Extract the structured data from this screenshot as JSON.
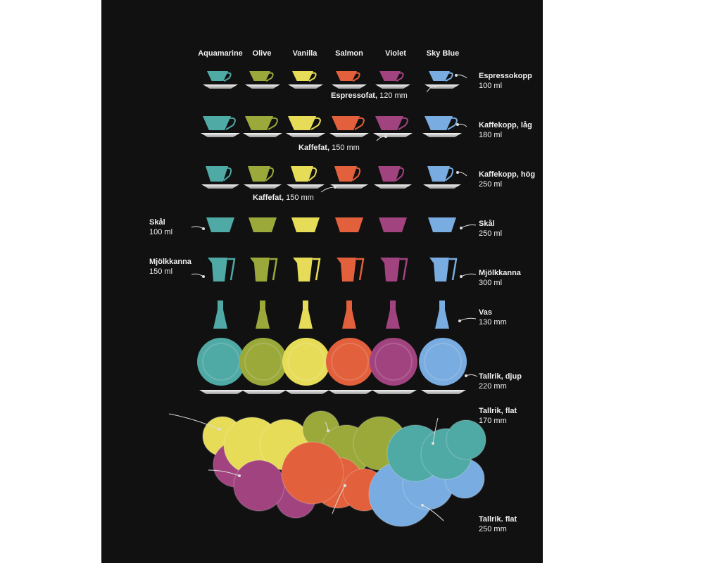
{
  "colors": [
    {
      "name": "Aquamarine",
      "hex": "#4fa9a5"
    },
    {
      "name": "Olive",
      "hex": "#9aa93a"
    },
    {
      "name": "Vanilla",
      "hex": "#e6dc58"
    },
    {
      "name": "Salmon",
      "hex": "#e2603c"
    },
    {
      "name": "Violet",
      "hex": "#a1437f"
    },
    {
      "name": "Sky Blue",
      "hex": "#79ace0"
    }
  ],
  "labels": {
    "espressokopp": {
      "name": "Espressokopp",
      "size": "100 ml"
    },
    "espressofat": {
      "name": "Espressofat,",
      "size": "120 mm"
    },
    "kaffekopp_lag": {
      "name": "Kaffekopp, låg",
      "size": "180 ml"
    },
    "kaffefat_1": {
      "name": "Kaffefat,",
      "size": "150 mm"
    },
    "kaffekopp_hog": {
      "name": "Kaffekopp, hög",
      "size": "250 ml"
    },
    "kaffefat_2": {
      "name": "Kaffefat,",
      "size": "150 mm"
    },
    "skal_small": {
      "name": "Skål",
      "size": "100 ml"
    },
    "skal_large": {
      "name": "Skål",
      "size": "250 ml"
    },
    "kanna_small": {
      "name": "Mjölkkanna",
      "size": "150 ml"
    },
    "kanna_large": {
      "name": "Mjölkkanna",
      "size": "300 ml"
    },
    "vas": {
      "name": "Vas",
      "size": "130 mm"
    },
    "tallrik_djup": {
      "name": "Tallrik, djup",
      "size": "220 mm"
    },
    "tallrik_flat_170": {
      "name": "Tallrik, flat",
      "size": "170 mm"
    },
    "tallrik_flat_250": {
      "name": "Tallrik. flat",
      "size": "250 mm"
    }
  }
}
